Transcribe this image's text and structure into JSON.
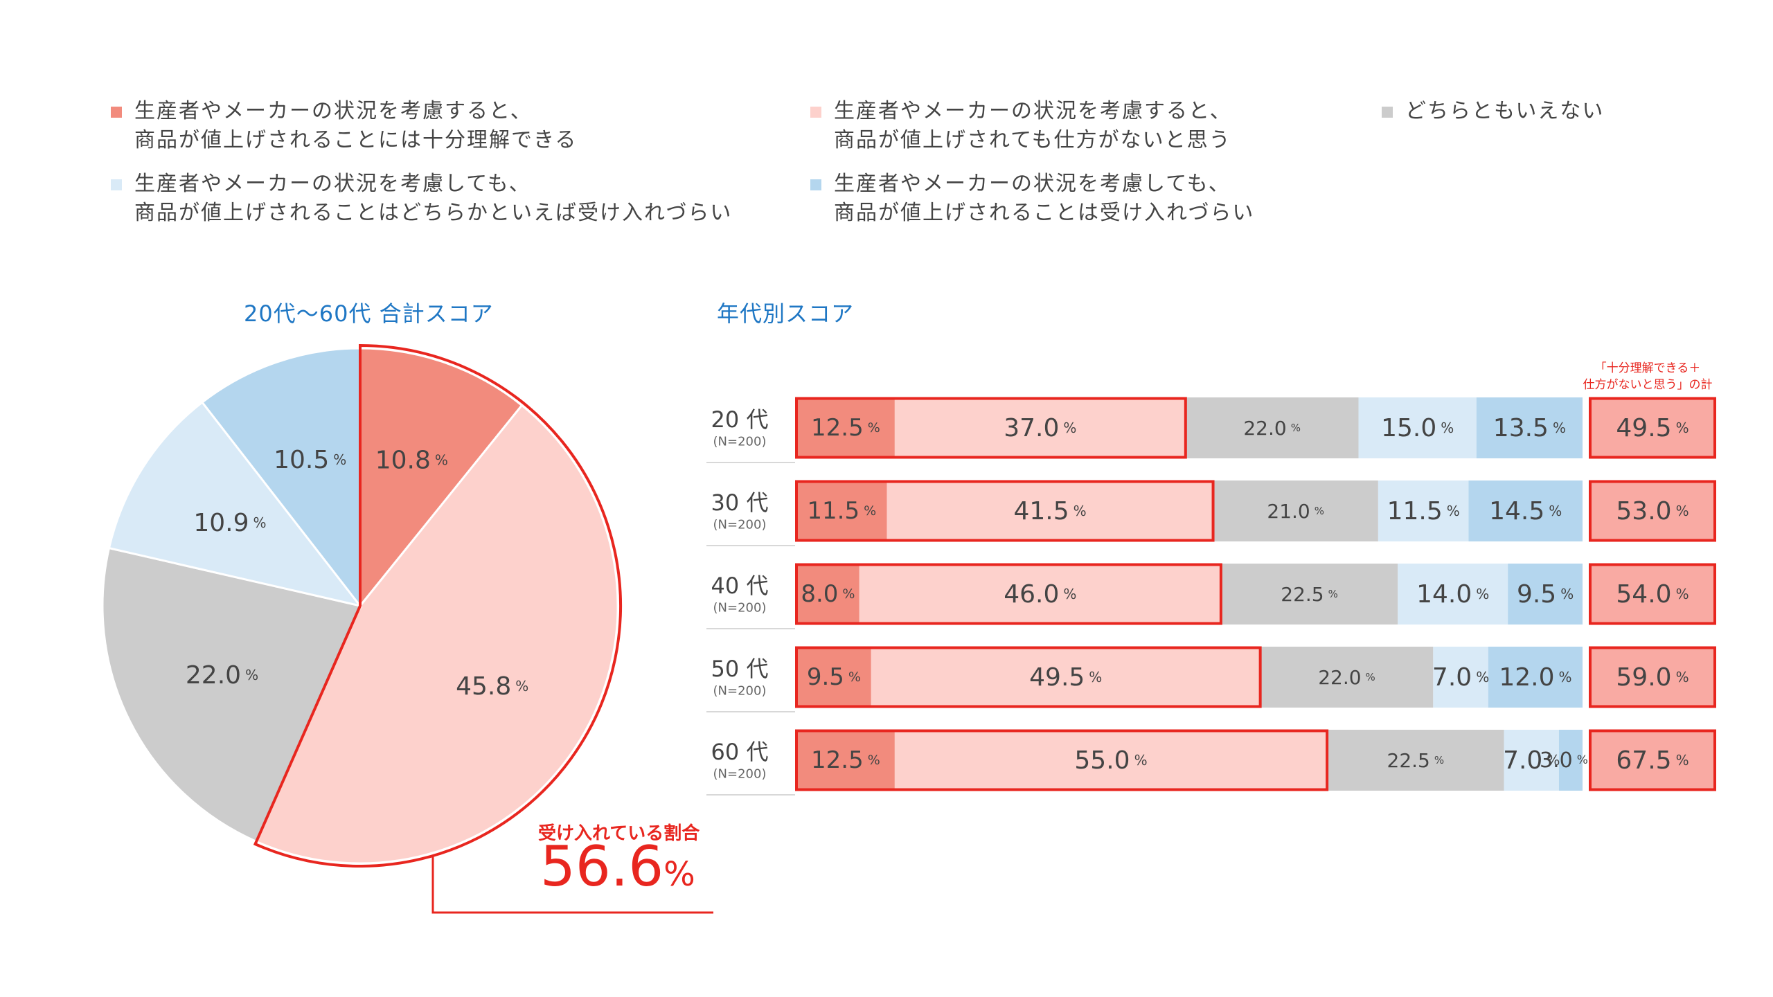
{
  "colors": {
    "understand": "#f28b7d",
    "unavoidable": "#fdd1cc",
    "neutral": "#cccccc",
    "reluctant": "#d9eaf7",
    "hard": "#b4d6ee",
    "accent": "#e8261f",
    "title": "#1f77c4",
    "total_fill": "#f9aaa3"
  },
  "legend": [
    {
      "line1": "生産者やメーカーの状況を考慮すると、",
      "line2": "商品が値上げされることには十分理解できる"
    },
    {
      "line1": "生産者やメーカーの状況を考慮すると、",
      "line2": "商品が値上げされても仕方がないと思う"
    },
    {
      "line1": "どちらともいえない",
      "line2": ""
    },
    {
      "line1": "生産者やメーカーの状況を考慮しても、",
      "line2": "商品が値上げされることはどちらかといえば受け入れづらい"
    },
    {
      "line1": "生産者やメーカーの状況を考慮しても、",
      "line2": "商品が値上げされることは受け入れづらい"
    }
  ],
  "pie_title": "20代～60代 合計スコア",
  "bar_title": "年代別スコア",
  "total_header": {
    "line1": "「十分理解できる＋",
    "line2": "仕方がないと思う」の計"
  },
  "callout": {
    "label": "受け入れている割合",
    "value": "56.6",
    "unit": "%"
  },
  "chart_data": [
    {
      "type": "pie",
      "title": "20代～60代 合計スコア",
      "slices": [
        {
          "category": 0,
          "value": 10.8,
          "label": "10.8"
        },
        {
          "category": 1,
          "value": 45.8,
          "label": "45.8"
        },
        {
          "category": 2,
          "value": 22.0,
          "label": "22.0"
        },
        {
          "category": 3,
          "value": 10.9,
          "label": "10.9"
        },
        {
          "category": 4,
          "value": 10.5,
          "label": "10.5"
        }
      ],
      "unit": "%"
    },
    {
      "type": "bar",
      "stacked": true,
      "orientation": "horizontal",
      "title": "年代別スコア",
      "unit": "%",
      "rows": [
        {
          "age": "20 代",
          "n": "(N=200)",
          "values": [
            12.5,
            37.0,
            22.0,
            15.0,
            13.5
          ],
          "labels": [
            "12.5",
            "37.0",
            "22.0",
            "15.0",
            "13.5"
          ],
          "total": "49.5"
        },
        {
          "age": "30 代",
          "n": "(N=200)",
          "values": [
            11.5,
            41.5,
            21.0,
            11.5,
            14.5
          ],
          "labels": [
            "11.5",
            "41.5",
            "21.0",
            "11.5",
            "14.5"
          ],
          "total": "53.0"
        },
        {
          "age": "40 代",
          "n": "(N=200)",
          "values": [
            8.0,
            46.0,
            22.5,
            14.0,
            9.5
          ],
          "labels": [
            "8.0",
            "46.0",
            "22.5",
            "14.0",
            "9.5"
          ],
          "total": "54.0"
        },
        {
          "age": "50 代",
          "n": "(N=200)",
          "values": [
            9.5,
            49.5,
            22.0,
            7.0,
            12.0
          ],
          "labels": [
            "9.5",
            "49.5",
            "22.0",
            "7.0",
            "12.0"
          ],
          "total": "59.0"
        },
        {
          "age": "60 代",
          "n": "(N=200)",
          "values": [
            12.5,
            55.0,
            22.5,
            7.0,
            3.0
          ],
          "labels": [
            "12.5",
            "55.0",
            "22.5",
            "7.0",
            "3.0"
          ],
          "total": "67.5"
        }
      ]
    }
  ]
}
